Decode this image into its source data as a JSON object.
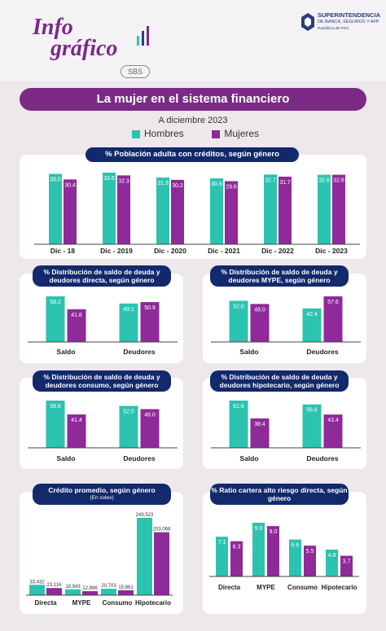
{
  "brand": {
    "line1": "Info",
    "line2": "gráfico",
    "badge": "SBS",
    "org_name": "SUPERINTENDENCIA",
    "org_sub": "DE BANCA, SEGUROS Y AFP",
    "org_country": "República del Perú"
  },
  "header": {
    "title": "La mujer en el sistema financiero",
    "date": "A diciembre 2023"
  },
  "legend": {
    "hombres": "Hombres",
    "mujeres": "Mujeres"
  },
  "colors": {
    "hombres": "#2cc3b0",
    "mujeres": "#8e2a99",
    "pill": "#12296b",
    "title": "#7b2a86"
  },
  "chart_data": [
    {
      "id": "poblacion",
      "type": "bar",
      "title": "% Población adulta con créditos, según género",
      "subtitle": "",
      "categories": [
        "Dic - 18",
        "Dic - 2019",
        "Dic - 2020",
        "Dic - 2021",
        "Dic - 2022",
        "Dic - 2023"
      ],
      "series": [
        {
          "name": "Hombres",
          "values": [
            33.0,
            33.6,
            31.3,
            30.9,
            32.7,
            32.6
          ],
          "labels": [
            "33.0",
            "33.6",
            "31.3",
            "30.9",
            "32.7",
            "32.6"
          ]
        },
        {
          "name": "Mujeres",
          "values": [
            30.4,
            32.3,
            30.2,
            29.6,
            31.7,
            32.6
          ],
          "labels": [
            "30.4",
            "32.3",
            "30.2",
            "29.6",
            "31.7",
            "32.6"
          ]
        }
      ],
      "ylim": [
        0,
        33.6
      ]
    },
    {
      "id": "deuda_directa",
      "type": "bar",
      "title": "% Distribución de saldo de deuda y deudores directa, según género",
      "subtitle": "",
      "categories": [
        "Saldo",
        "Deudores"
      ],
      "series": [
        {
          "name": "Hombres",
          "values": [
            58.2,
            49.1
          ],
          "labels": [
            "58.2",
            "49.1"
          ]
        },
        {
          "name": "Mujeres",
          "values": [
            41.8,
            50.9
          ],
          "labels": [
            "41.8",
            "50.9"
          ]
        }
      ],
      "ylim": [
        0,
        58.2
      ]
    },
    {
      "id": "deuda_mype",
      "type": "bar",
      "title": "% Distribución de saldo de deuda y deudores MYPE, según género",
      "subtitle": "",
      "categories": [
        "Saldo",
        "Deudores"
      ],
      "series": [
        {
          "name": "Hombres",
          "values": [
            52.0,
            42.4
          ],
          "labels": [
            "52.0",
            "42.4"
          ]
        },
        {
          "name": "Mujeres",
          "values": [
            48.0,
            57.6
          ],
          "labels": [
            "48.0",
            "57.6"
          ]
        }
      ],
      "ylim": [
        0,
        57.6
      ]
    },
    {
      "id": "deuda_consumo",
      "type": "bar",
      "title": "% Distribución de saldo de deuda y deudores consumo, según género",
      "subtitle": "",
      "categories": [
        "Saldo",
        "Deudores"
      ],
      "series": [
        {
          "name": "Hombres",
          "values": [
            58.6,
            52.0
          ],
          "labels": [
            "58.6",
            "52.0"
          ]
        },
        {
          "name": "Mujeres",
          "values": [
            41.4,
            48.0
          ],
          "labels": [
            "41.4",
            "48.0"
          ]
        }
      ],
      "ylim": [
        0,
        58.6
      ]
    },
    {
      "id": "deuda_hipotecario",
      "type": "bar",
      "title": "% Distribución de saldo de deuda y deudores hipotecario, según género",
      "subtitle": "",
      "categories": [
        "Saldo",
        "Deudores"
      ],
      "series": [
        {
          "name": "Hombres",
          "values": [
            61.6,
            56.6
          ],
          "labels": [
            "61.6",
            "56.6"
          ]
        },
        {
          "name": "Mujeres",
          "values": [
            38.4,
            43.4
          ],
          "labels": [
            "38.4",
            "43.4"
          ]
        }
      ],
      "ylim": [
        0,
        61.6
      ]
    },
    {
      "id": "credito_promedio",
      "type": "bar",
      "title": "Crédito promedio, según género",
      "subtitle": "(En soles)",
      "categories": [
        "Directa",
        "MYPE",
        "Consumo",
        "Hipotecario"
      ],
      "series": [
        {
          "name": "Hombres",
          "values": [
            33432,
            18943,
            20703,
            249523
          ],
          "labels": [
            "33,432",
            "18,943",
            "20,703",
            "249,523"
          ]
        },
        {
          "name": "Mujeres",
          "values": [
            23116,
            12896,
            15861,
            203068
          ],
          "labels": [
            "23,116",
            "12,896",
            "15,861",
            "203,068"
          ]
        }
      ],
      "ylim": [
        0,
        249523
      ]
    },
    {
      "id": "ratio_cartera",
      "type": "bar",
      "title": "% Ratio cartera alto riesgo directa, según género",
      "subtitle": "",
      "categories": [
        "Directa",
        "MYPE",
        "Consumo",
        "Hipotecario"
      ],
      "series": [
        {
          "name": "Hombres",
          "values": [
            7.1,
            9.6,
            6.6,
            4.8
          ],
          "labels": [
            "7.1",
            "9.6",
            "6.6",
            "4.8"
          ]
        },
        {
          "name": "Mujeres",
          "values": [
            6.3,
            9.0,
            5.5,
            3.7
          ],
          "labels": [
            "6.3",
            "9.0",
            "5.5",
            "3.7"
          ]
        }
      ],
      "ylim": [
        0,
        9.6
      ]
    }
  ]
}
